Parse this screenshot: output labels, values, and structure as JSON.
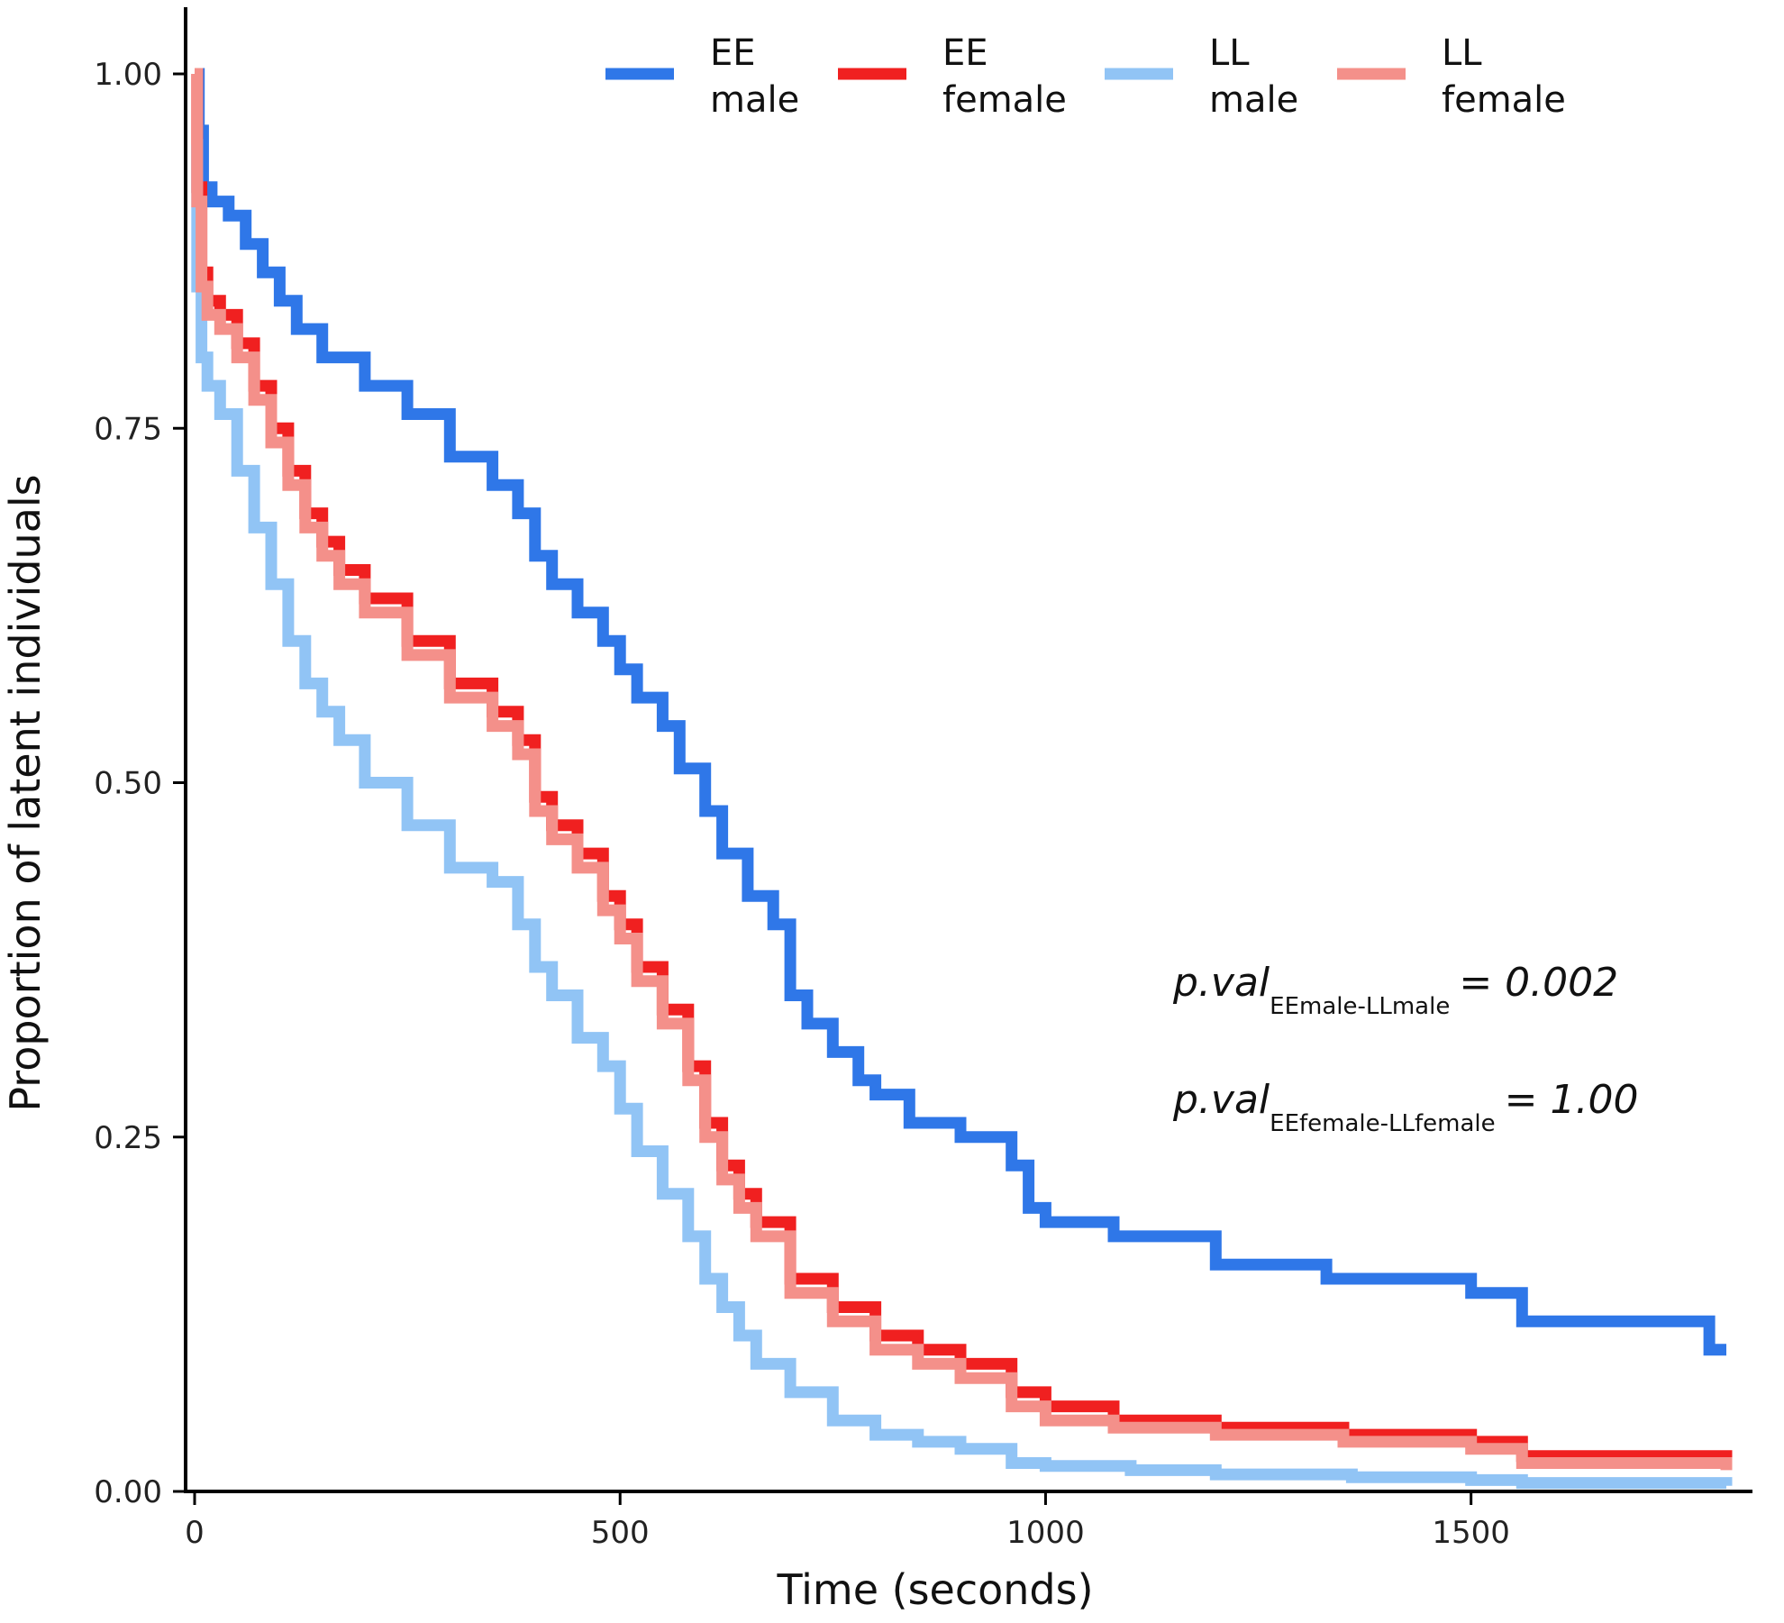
{
  "chart_data": {
    "type": "line",
    "title": "",
    "xlabel": "Time (seconds)",
    "ylabel": "Proportion of latent individuals",
    "xlim": [
      -10,
      1810
    ],
    "ylim": [
      0,
      1.05
    ],
    "xticks": [
      0,
      500,
      1000,
      1500
    ],
    "xtick_labels": [
      "0",
      "500",
      "1000",
      "1500"
    ],
    "yticks": [
      0,
      0.25,
      0.5,
      0.75,
      1.0
    ],
    "ytick_labels": [
      "0.00",
      "0.25",
      "0.50",
      "0.75",
      "1.00"
    ],
    "legend_position": "top",
    "grid": false,
    "series": [
      {
        "name": "EE male",
        "legend_line1": "EE",
        "legend_line2": "male",
        "color": "#2f77e8",
        "x": [
          0,
          5,
          10,
          20,
          40,
          60,
          80,
          100,
          120,
          150,
          200,
          250,
          300,
          350,
          380,
          400,
          420,
          450,
          480,
          500,
          520,
          550,
          570,
          600,
          620,
          650,
          680,
          700,
          720,
          750,
          780,
          800,
          840,
          900,
          960,
          980,
          1000,
          1080,
          1200,
          1330,
          1500,
          1560,
          1780,
          1800
        ],
        "y": [
          1.0,
          0.96,
          0.92,
          0.91,
          0.9,
          0.88,
          0.86,
          0.84,
          0.82,
          0.8,
          0.78,
          0.76,
          0.73,
          0.71,
          0.69,
          0.66,
          0.64,
          0.62,
          0.6,
          0.58,
          0.56,
          0.54,
          0.51,
          0.48,
          0.45,
          0.42,
          0.4,
          0.35,
          0.33,
          0.31,
          0.29,
          0.28,
          0.26,
          0.25,
          0.23,
          0.2,
          0.19,
          0.18,
          0.16,
          0.15,
          0.14,
          0.12,
          0.1,
          0.1
        ]
      },
      {
        "name": "EE female",
        "legend_line1": "EE",
        "legend_line2": "female",
        "color": "#f02020",
        "x": [
          0,
          3,
          8,
          15,
          30,
          50,
          70,
          90,
          110,
          130,
          150,
          170,
          200,
          250,
          300,
          350,
          380,
          400,
          420,
          450,
          480,
          500,
          520,
          550,
          580,
          600,
          620,
          640,
          660,
          700,
          750,
          800,
          850,
          900,
          960,
          1000,
          1080,
          1200,
          1350,
          1500,
          1560,
          1800
        ],
        "y": [
          1.0,
          0.92,
          0.86,
          0.84,
          0.83,
          0.81,
          0.78,
          0.75,
          0.72,
          0.69,
          0.67,
          0.65,
          0.63,
          0.6,
          0.57,
          0.55,
          0.53,
          0.49,
          0.47,
          0.45,
          0.42,
          0.4,
          0.37,
          0.34,
          0.3,
          0.26,
          0.23,
          0.21,
          0.19,
          0.15,
          0.13,
          0.11,
          0.1,
          0.09,
          0.07,
          0.06,
          0.05,
          0.045,
          0.04,
          0.035,
          0.025,
          0.02
        ]
      },
      {
        "name": "LL male",
        "legend_line1": "LL",
        "legend_line2": "male",
        "color": "#91c4f5",
        "x": [
          0,
          3,
          8,
          15,
          30,
          50,
          70,
          90,
          110,
          130,
          150,
          170,
          200,
          250,
          300,
          350,
          380,
          400,
          420,
          450,
          480,
          500,
          520,
          550,
          580,
          600,
          620,
          640,
          660,
          700,
          750,
          800,
          850,
          900,
          960,
          1000,
          1100,
          1200,
          1360,
          1500,
          1560,
          1800
        ],
        "y": [
          0.95,
          0.85,
          0.8,
          0.78,
          0.76,
          0.72,
          0.68,
          0.64,
          0.6,
          0.57,
          0.55,
          0.53,
          0.5,
          0.47,
          0.44,
          0.43,
          0.4,
          0.37,
          0.35,
          0.32,
          0.3,
          0.27,
          0.24,
          0.21,
          0.18,
          0.15,
          0.13,
          0.11,
          0.09,
          0.07,
          0.05,
          0.04,
          0.035,
          0.03,
          0.02,
          0.018,
          0.015,
          0.012,
          0.01,
          0.008,
          0.006,
          0.004
        ]
      },
      {
        "name": "LL female",
        "legend_line1": "LL",
        "legend_line2": "female",
        "color": "#f4908a",
        "x": [
          0,
          3,
          8,
          15,
          30,
          50,
          70,
          90,
          110,
          130,
          150,
          170,
          200,
          250,
          300,
          350,
          380,
          400,
          420,
          450,
          480,
          500,
          520,
          550,
          580,
          600,
          620,
          640,
          660,
          700,
          750,
          800,
          850,
          900,
          960,
          1000,
          1080,
          1200,
          1350,
          1500,
          1560,
          1800
        ],
        "y": [
          1.0,
          0.91,
          0.85,
          0.83,
          0.82,
          0.8,
          0.77,
          0.74,
          0.71,
          0.68,
          0.66,
          0.64,
          0.62,
          0.59,
          0.56,
          0.54,
          0.52,
          0.48,
          0.46,
          0.44,
          0.41,
          0.39,
          0.36,
          0.33,
          0.29,
          0.25,
          0.22,
          0.2,
          0.18,
          0.14,
          0.12,
          0.1,
          0.09,
          0.08,
          0.06,
          0.05,
          0.045,
          0.04,
          0.035,
          0.03,
          0.02,
          0.015
        ]
      }
    ],
    "annotations": [
      {
        "italic": "p.val",
        "subscript": "EEmale-LLmale",
        "value": "= 0.002"
      },
      {
        "italic": "p.val",
        "subscript": "EEfemale-LLfemale",
        "value": "= 1.00"
      }
    ]
  }
}
